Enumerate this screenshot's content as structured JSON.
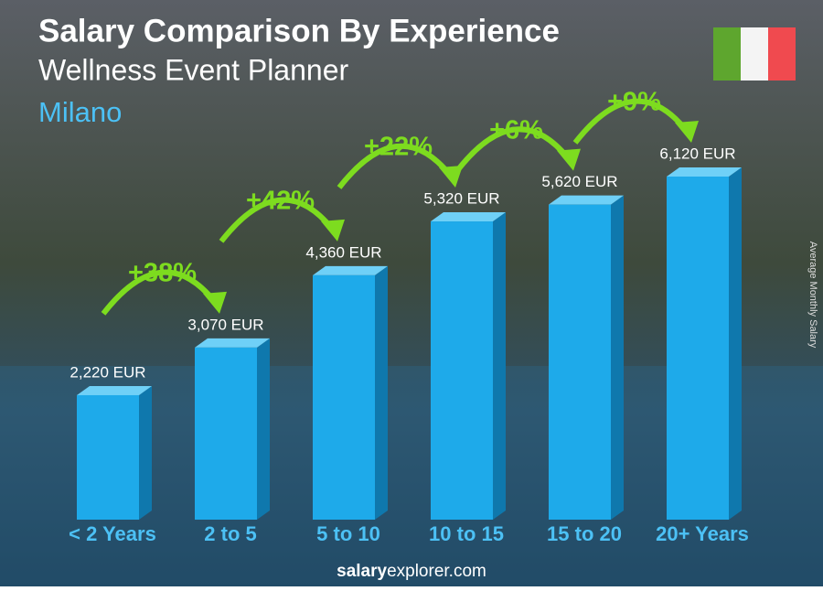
{
  "chart_data": {
    "type": "bar",
    "title": "Salary Comparison By Experience",
    "subtitle": "Wellness Event Planner",
    "location": "Milano",
    "y_axis_label": "Average Monthly Salary",
    "categories": [
      "< 2 Years",
      "2 to 5",
      "5 to 10",
      "10 to 15",
      "15 to 20",
      "20+ Years"
    ],
    "values": [
      2220,
      3070,
      4360,
      5320,
      5620,
      6120
    ],
    "value_labels": [
      "2,220 EUR",
      "3,070 EUR",
      "4,360 EUR",
      "5,320 EUR",
      "5,620 EUR",
      "6,120 EUR"
    ],
    "color": "#1eaaea",
    "changes": [
      38,
      42,
      22,
      6,
      9
    ],
    "change_labels": [
      "+38%",
      "+42%",
      "+22%",
      "+6%",
      "+9%"
    ],
    "change_color": "#7ddc1f",
    "footer": {
      "bold": "salary",
      "rest": "explorer.com"
    }
  }
}
